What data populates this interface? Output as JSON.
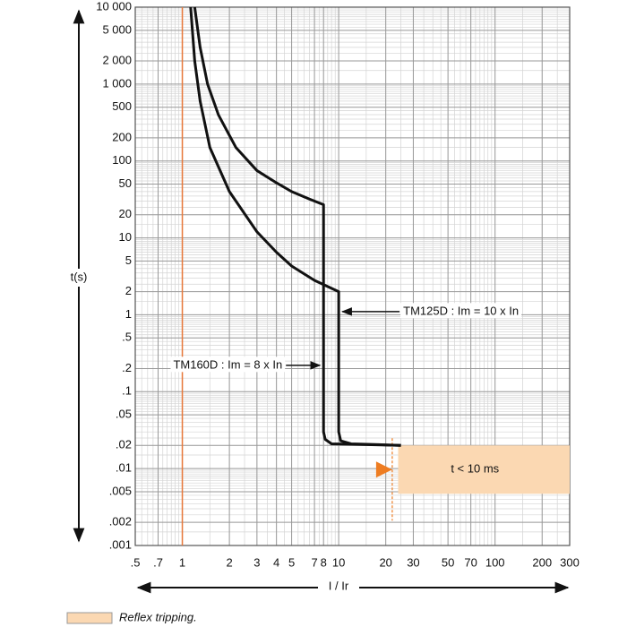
{
  "chart_data": {
    "type": "line",
    "log_x": true,
    "log_y": true,
    "grid": true,
    "xlabel": "I / Ir",
    "ylabel": "t(s)",
    "xlim": [
      0.5,
      300
    ],
    "ylim": [
      0.001,
      10000
    ],
    "xticks": [
      {
        "value": 0.5,
        "label": ".5"
      },
      {
        "value": 0.7,
        "label": ".7"
      },
      1,
      2,
      3,
      4,
      5,
      7,
      8,
      10,
      20,
      30,
      50,
      70,
      100,
      200,
      300
    ],
    "yticks": [
      {
        "value": 10000,
        "label": "10 000"
      },
      {
        "value": 5000,
        "label": "5 000"
      },
      {
        "value": 2000,
        "label": "2 000"
      },
      {
        "value": 1000,
        "label": "1 000"
      },
      500,
      200,
      100,
      50,
      20,
      10,
      5,
      2,
      1,
      {
        "value": 0.5,
        "label": ".5"
      },
      {
        "value": 0.2,
        "label": ".2"
      },
      {
        "value": 0.1,
        "label": ".1"
      },
      {
        "value": 0.05,
        "label": ".05"
      },
      {
        "value": 0.02,
        "label": ".02"
      },
      {
        "value": 0.01,
        "label": ".01"
      },
      {
        "value": 0.005,
        "label": ".005"
      },
      {
        "value": 0.002,
        "label": ".002"
      },
      {
        "value": 0.001,
        "label": ".001"
      }
    ],
    "series": [
      {
        "color": "#111111",
        "x": [
          1.2,
          1.3,
          1.45,
          1.7,
          2.2,
          3,
          4,
          5,
          6.5,
          8,
          8,
          8.2,
          9,
          15,
          25
        ],
        "values": [
          10000,
          3000,
          1000,
          400,
          150,
          75,
          52,
          40,
          32,
          27,
          0.03,
          0.024,
          0.021,
          0.0205,
          0.02
        ]
      },
      {
        "color": "#111111",
        "x": [
          1.13,
          1.2,
          1.3,
          1.5,
          2,
          3,
          4,
          5,
          7,
          10,
          10,
          10.3,
          12,
          18,
          25
        ],
        "values": [
          10000,
          2000,
          600,
          150,
          40,
          12,
          6.5,
          4.3,
          2.8,
          2,
          0.03,
          0.023,
          0.021,
          0.0205,
          0.02
        ]
      }
    ],
    "reference_line": {
      "x": 1,
      "color": "#e8783a"
    },
    "region": {
      "label": "t < 10 ms",
      "xlim": [
        24,
        300
      ],
      "ylim": [
        0.0047,
        0.02
      ],
      "color": "#fbd8b2",
      "marker_x": 22,
      "marker_color": "#ee7d22"
    },
    "annotations": [
      {
        "text": "TM125D : Im = 10 x In",
        "x": 10,
        "y": 1.1
      },
      {
        "text": "TM160D : Im = 8 x In",
        "x": 8,
        "y": 0.22
      }
    ],
    "legend": {
      "label": "Reflex tripping.",
      "color": "#fbd8b2"
    }
  }
}
